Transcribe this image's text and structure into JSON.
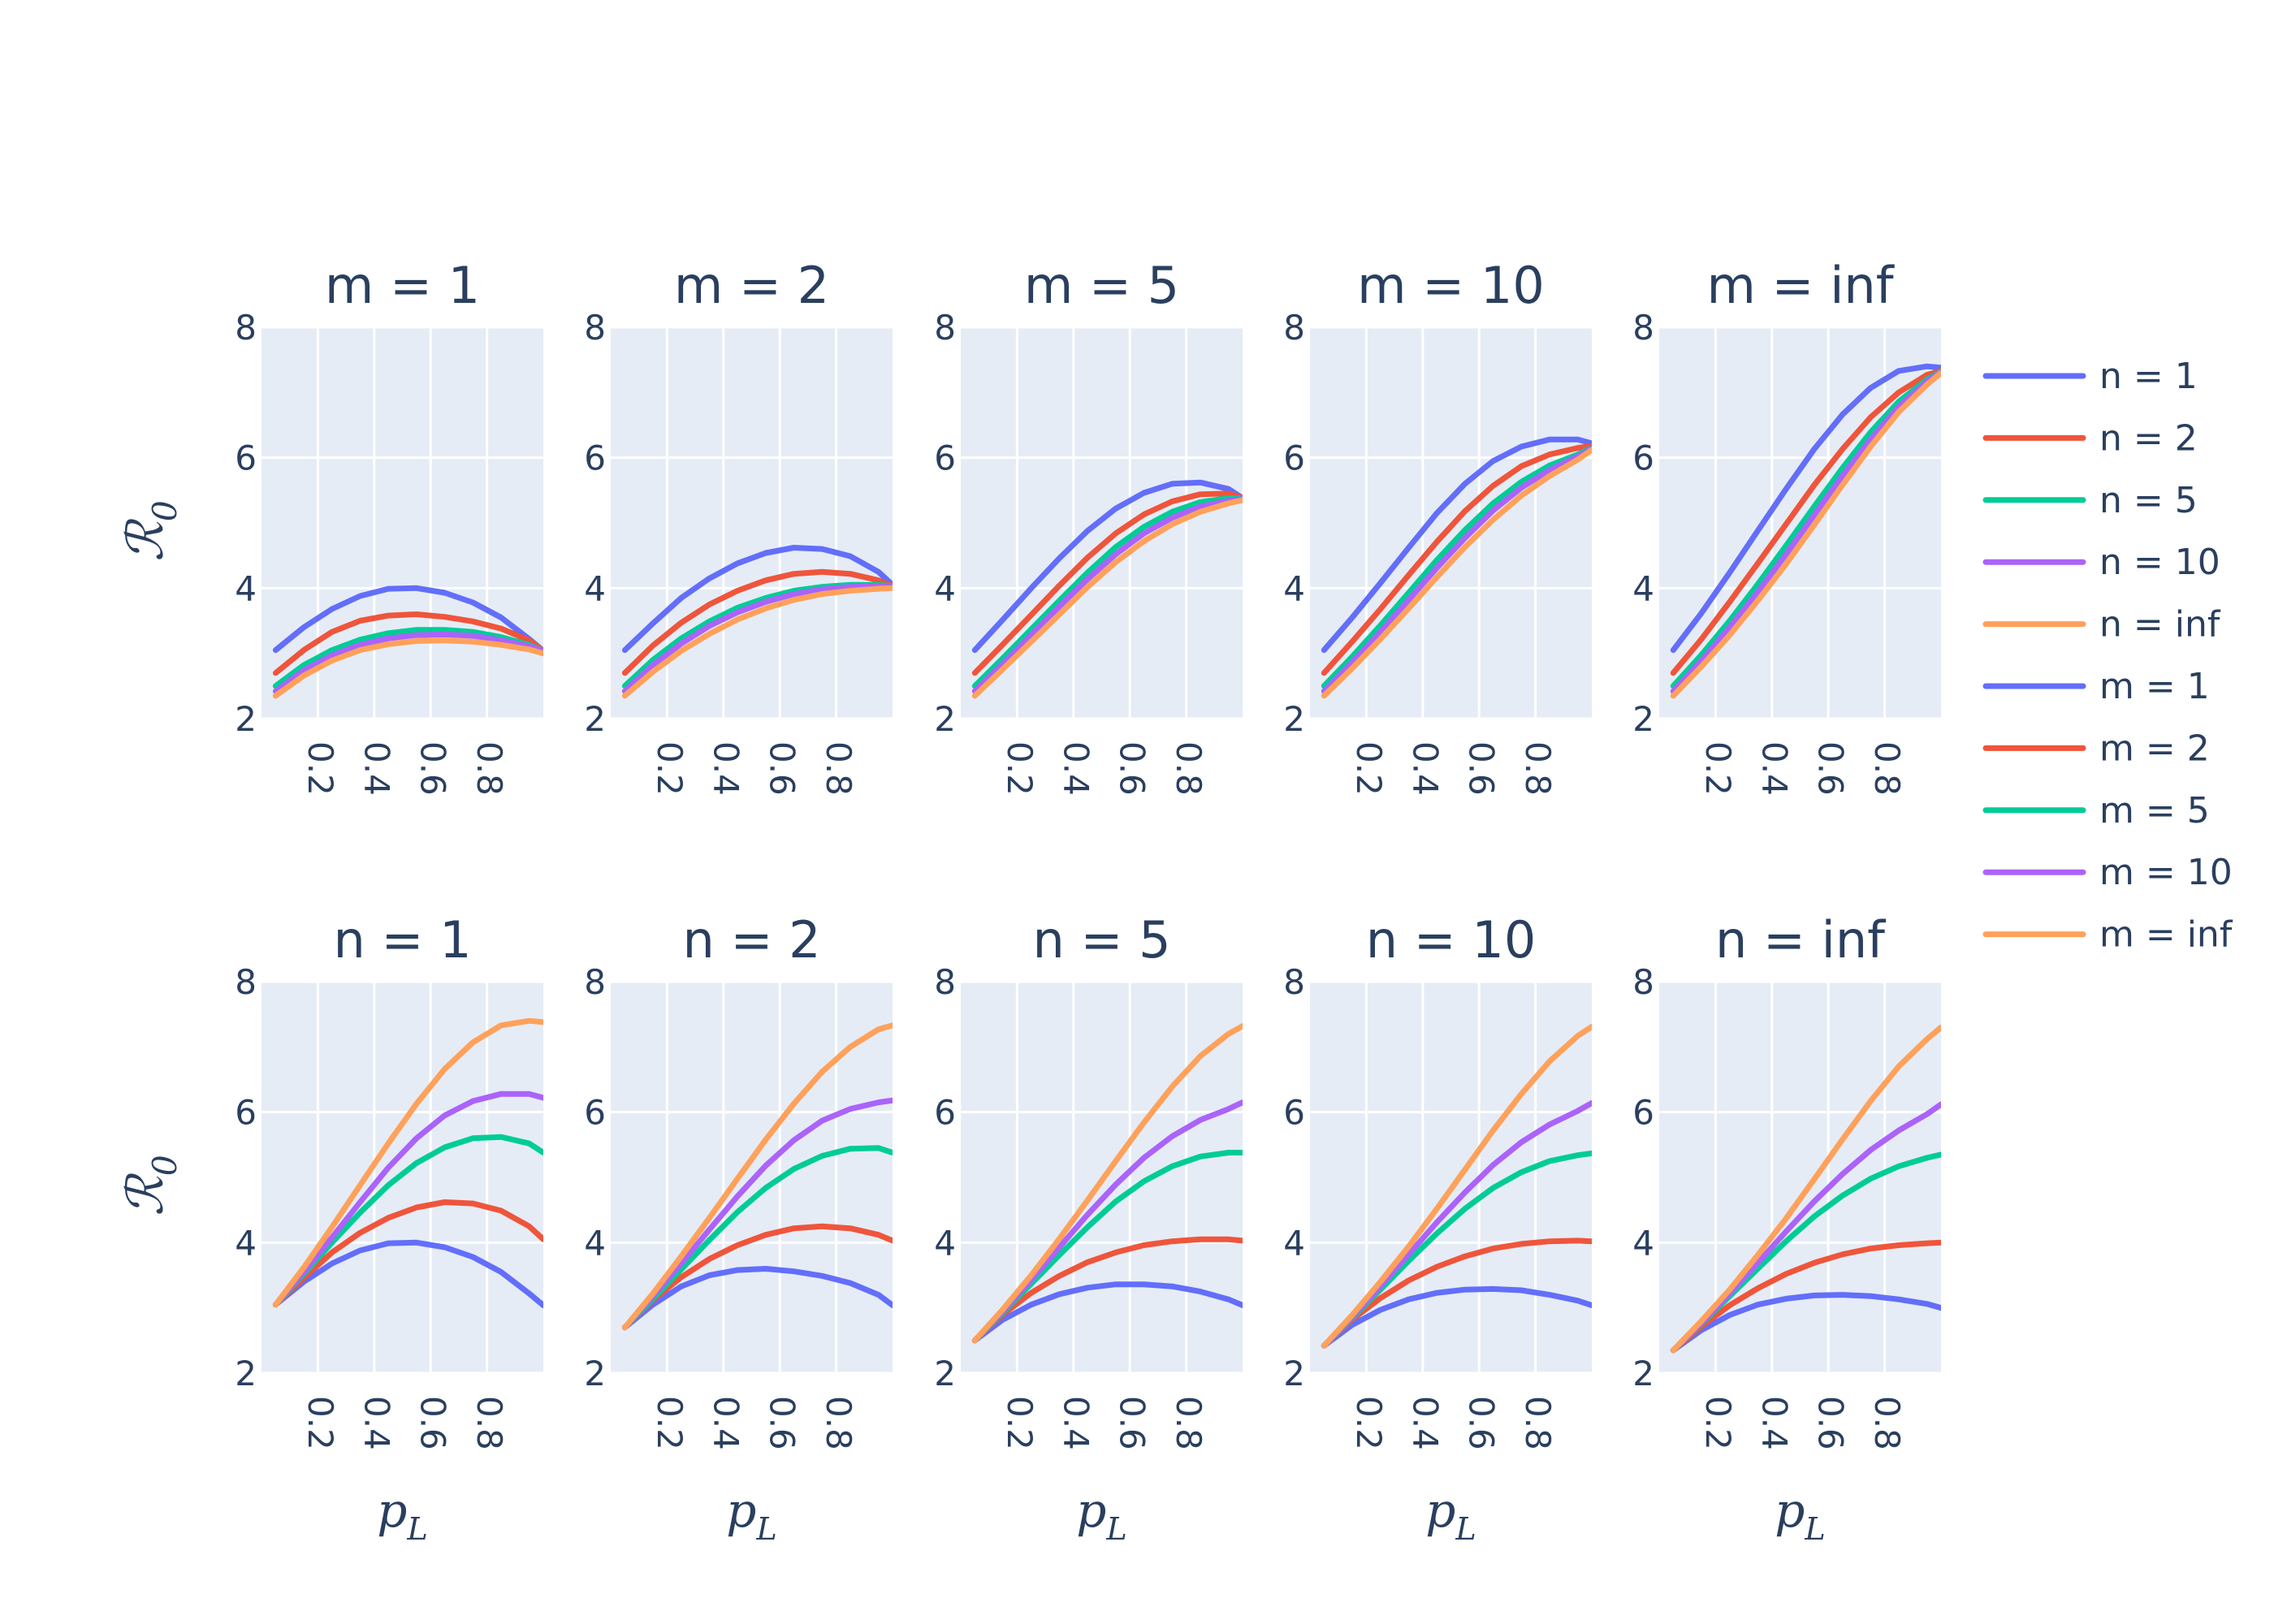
{
  "chart_data": {
    "type": "line",
    "x": [
      0.05,
      0.15,
      0.25,
      0.35,
      0.45,
      0.55,
      0.65,
      0.75,
      0.85,
      0.95,
      1.0
    ],
    "xticks": [
      "0.2",
      "0.4",
      "0.6",
      "0.8"
    ],
    "xtick_values": [
      0.2,
      0.4,
      0.6,
      0.8
    ],
    "yticks": [
      "2",
      "4",
      "6",
      "8"
    ],
    "ytick_values": [
      2,
      4,
      6,
      8
    ],
    "xlim": [
      0,
      1
    ],
    "ylim": [
      2,
      8
    ],
    "xlabel": "p_L",
    "ylabel": "R_0",
    "grid": true,
    "legend_position": "right",
    "colors": [
      "#636efa",
      "#EF553B",
      "#00cc96",
      "#ab63fa",
      "#FFA15A"
    ],
    "legend": [
      "n = 1",
      "n = 2",
      "n = 5",
      "n = 10",
      "n = inf",
      "m = 1",
      "m = 2",
      "m = 5",
      "m = 10",
      "m = inf"
    ],
    "panels": [
      {
        "title": "m = 1",
        "series": [
          {
            "name": "n = 1",
            "values": [
              3.05,
              3.4,
              3.68,
              3.88,
              3.99,
              4.0,
              3.93,
              3.78,
              3.55,
              3.22,
              3.04
            ]
          },
          {
            "name": "n = 2",
            "values": [
              2.7,
              3.05,
              3.33,
              3.5,
              3.58,
              3.6,
              3.56,
              3.49,
              3.38,
              3.2,
              3.04
            ]
          },
          {
            "name": "n = 5",
            "values": [
              2.5,
              2.82,
              3.05,
              3.21,
              3.31,
              3.36,
              3.36,
              3.33,
              3.25,
              3.13,
              3.04
            ]
          },
          {
            "name": "n = 10",
            "values": [
              2.42,
              2.74,
              2.97,
              3.13,
              3.23,
              3.28,
              3.29,
              3.27,
              3.2,
              3.11,
              3.04
            ]
          },
          {
            "name": "n = inf",
            "values": [
              2.35,
              2.66,
              2.89,
              3.05,
              3.14,
              3.19,
              3.2,
              3.18,
              3.13,
              3.06,
              3.0
            ]
          }
        ]
      },
      {
        "title": "m = 2",
        "series": [
          {
            "name": "n = 1",
            "values": [
              3.05,
              3.46,
              3.85,
              4.15,
              4.38,
              4.54,
              4.62,
              4.6,
              4.49,
              4.25,
              4.05
            ]
          },
          {
            "name": "n = 2",
            "values": [
              2.7,
              3.12,
              3.47,
              3.75,
              3.96,
              4.12,
              4.22,
              4.25,
              4.22,
              4.12,
              4.03
            ]
          },
          {
            "name": "n = 5",
            "values": [
              2.5,
              2.9,
              3.23,
              3.49,
              3.7,
              3.85,
              3.96,
              4.02,
              4.05,
              4.05,
              4.03
            ]
          },
          {
            "name": "n = 10",
            "values": [
              2.42,
              2.82,
              3.15,
              3.42,
              3.63,
              3.79,
              3.91,
              3.98,
              4.02,
              4.03,
              4.02
            ]
          },
          {
            "name": "n = inf",
            "values": [
              2.35,
              2.72,
              3.04,
              3.3,
              3.52,
              3.69,
              3.82,
              3.91,
              3.96,
              3.99,
              4.0
            ]
          }
        ]
      },
      {
        "title": "m = 5",
        "series": [
          {
            "name": "n = 1",
            "values": [
              3.05,
              3.52,
              4.0,
              4.46,
              4.88,
              5.22,
              5.46,
              5.6,
              5.62,
              5.52,
              5.38
            ]
          },
          {
            "name": "n = 2",
            "values": [
              2.7,
              3.14,
              3.59,
              4.04,
              4.47,
              4.84,
              5.13,
              5.33,
              5.44,
              5.45,
              5.38
            ]
          },
          {
            "name": "n = 5",
            "values": [
              2.5,
              2.93,
              3.37,
              3.81,
              4.24,
              4.63,
              4.94,
              5.17,
              5.32,
              5.38,
              5.38
            ]
          },
          {
            "name": "n = 10",
            "values": [
              2.42,
              2.84,
              3.28,
              3.72,
              4.14,
              4.52,
              4.84,
              5.08,
              5.25,
              5.34,
              5.37
            ]
          },
          {
            "name": "n = inf",
            "values": [
              2.35,
              2.76,
              3.18,
              3.6,
              4.02,
              4.4,
              4.72,
              4.98,
              5.17,
              5.3,
              5.35
            ]
          }
        ]
      },
      {
        "title": "m = 10",
        "series": [
          {
            "name": "n = 1",
            "values": [
              3.05,
              3.55,
              4.08,
              4.62,
              5.15,
              5.6,
              5.95,
              6.17,
              6.28,
              6.28,
              6.22
            ]
          },
          {
            "name": "n = 2",
            "values": [
              2.7,
              3.18,
              3.68,
              4.2,
              4.71,
              5.18,
              5.57,
              5.87,
              6.05,
              6.15,
              6.18
            ]
          },
          {
            "name": "n = 5",
            "values": [
              2.5,
              2.95,
              3.43,
              3.93,
              4.43,
              4.89,
              5.3,
              5.63,
              5.88,
              6.05,
              6.15
            ]
          },
          {
            "name": "n = 10",
            "values": [
              2.42,
              2.86,
              3.33,
              3.82,
              4.31,
              4.77,
              5.19,
              5.54,
              5.81,
              6.02,
              6.14
            ]
          },
          {
            "name": "n = inf",
            "values": [
              2.35,
              2.77,
              3.22,
              3.69,
              4.17,
              4.63,
              5.05,
              5.42,
              5.72,
              5.97,
              6.12
            ]
          }
        ]
      },
      {
        "title": "m = inf",
        "series": [
          {
            "name": "n = 1",
            "values": [
              3.05,
              3.62,
              4.24,
              4.88,
              5.52,
              6.13,
              6.66,
              7.07,
              7.33,
              7.4,
              7.38
            ]
          },
          {
            "name": "n = 2",
            "values": [
              2.7,
              3.22,
              3.79,
              4.38,
              4.98,
              5.58,
              6.13,
              6.62,
              7.0,
              7.27,
              7.33
            ]
          },
          {
            "name": "n = 5",
            "values": [
              2.5,
              2.98,
              3.5,
              4.06,
              4.65,
              5.25,
              5.84,
              6.39,
              6.86,
              7.2,
              7.32
            ]
          },
          {
            "name": "n = 10",
            "values": [
              2.42,
              2.89,
              3.4,
              3.94,
              4.52,
              5.12,
              5.72,
              6.28,
              6.78,
              7.17,
              7.31
            ]
          },
          {
            "name": "n = inf",
            "values": [
              2.35,
              2.8,
              3.28,
              3.81,
              4.37,
              4.97,
              5.58,
              6.17,
              6.7,
              7.12,
              7.3
            ]
          }
        ]
      },
      {
        "title": "n = 1",
        "series": [
          {
            "name": "m = 1",
            "values": [
              3.05,
              3.4,
              3.68,
              3.88,
              3.99,
              4.0,
              3.93,
              3.78,
              3.55,
              3.22,
              3.04
            ]
          },
          {
            "name": "m = 2",
            "values": [
              3.05,
              3.46,
              3.85,
              4.15,
              4.38,
              4.54,
              4.62,
              4.6,
              4.49,
              4.25,
              4.05
            ]
          },
          {
            "name": "m = 5",
            "values": [
              3.05,
              3.52,
              4.0,
              4.46,
              4.88,
              5.22,
              5.46,
              5.6,
              5.62,
              5.52,
              5.38
            ]
          },
          {
            "name": "m = 10",
            "values": [
              3.05,
              3.55,
              4.08,
              4.62,
              5.15,
              5.6,
              5.95,
              6.17,
              6.28,
              6.28,
              6.22
            ]
          },
          {
            "name": "m = inf",
            "values": [
              3.05,
              3.62,
              4.24,
              4.88,
              5.52,
              6.13,
              6.66,
              7.07,
              7.33,
              7.4,
              7.38
            ]
          }
        ]
      },
      {
        "title": "n = 2",
        "series": [
          {
            "name": "m = 1",
            "values": [
              2.7,
              3.05,
              3.33,
              3.5,
              3.58,
              3.6,
              3.56,
              3.49,
              3.38,
              3.2,
              3.04
            ]
          },
          {
            "name": "m = 2",
            "values": [
              2.7,
              3.12,
              3.47,
              3.75,
              3.96,
              4.12,
              4.22,
              4.25,
              4.22,
              4.12,
              4.03
            ]
          },
          {
            "name": "m = 5",
            "values": [
              2.7,
              3.14,
              3.59,
              4.04,
              4.47,
              4.84,
              5.13,
              5.33,
              5.44,
              5.45,
              5.38
            ]
          },
          {
            "name": "m = 10",
            "values": [
              2.7,
              3.18,
              3.68,
              4.2,
              4.71,
              5.18,
              5.57,
              5.87,
              6.05,
              6.15,
              6.18
            ]
          },
          {
            "name": "m = inf",
            "values": [
              2.7,
              3.22,
              3.79,
              4.38,
              4.98,
              5.58,
              6.13,
              6.62,
              7.0,
              7.27,
              7.33
            ]
          }
        ]
      },
      {
        "title": "n = 5",
        "series": [
          {
            "name": "m = 1",
            "values": [
              2.5,
              2.82,
              3.05,
              3.21,
              3.31,
              3.36,
              3.36,
              3.33,
              3.25,
              3.13,
              3.04
            ]
          },
          {
            "name": "m = 2",
            "values": [
              2.5,
              2.9,
              3.23,
              3.49,
              3.7,
              3.85,
              3.96,
              4.02,
              4.05,
              4.05,
              4.03
            ]
          },
          {
            "name": "m = 5",
            "values": [
              2.5,
              2.93,
              3.37,
              3.81,
              4.24,
              4.63,
              4.94,
              5.17,
              5.32,
              5.38,
              5.38
            ]
          },
          {
            "name": "m = 10",
            "values": [
              2.5,
              2.95,
              3.43,
              3.93,
              4.43,
              4.89,
              5.3,
              5.63,
              5.88,
              6.05,
              6.15
            ]
          },
          {
            "name": "m = inf",
            "values": [
              2.5,
              2.98,
              3.5,
              4.06,
              4.65,
              5.25,
              5.84,
              6.39,
              6.86,
              7.2,
              7.32
            ]
          }
        ]
      },
      {
        "title": "n = 10",
        "series": [
          {
            "name": "m = 1",
            "values": [
              2.42,
              2.74,
              2.97,
              3.13,
              3.23,
              3.28,
              3.29,
              3.27,
              3.2,
              3.11,
              3.04
            ]
          },
          {
            "name": "m = 2",
            "values": [
              2.42,
              2.82,
              3.15,
              3.42,
              3.63,
              3.79,
              3.91,
              3.98,
              4.02,
              4.03,
              4.02
            ]
          },
          {
            "name": "m = 5",
            "values": [
              2.42,
              2.84,
              3.28,
              3.72,
              4.14,
              4.52,
              4.84,
              5.08,
              5.25,
              5.34,
              5.37
            ]
          },
          {
            "name": "m = 10",
            "values": [
              2.42,
              2.86,
              3.33,
              3.82,
              4.31,
              4.77,
              5.19,
              5.54,
              5.81,
              6.02,
              6.14
            ]
          },
          {
            "name": "m = inf",
            "values": [
              2.42,
              2.89,
              3.4,
              3.94,
              4.52,
              5.12,
              5.72,
              6.28,
              6.78,
              7.17,
              7.31
            ]
          }
        ]
      },
      {
        "title": "n = inf",
        "series": [
          {
            "name": "m = 1",
            "values": [
              2.35,
              2.66,
              2.89,
              3.05,
              3.14,
              3.19,
              3.2,
              3.18,
              3.13,
              3.06,
              3.0
            ]
          },
          {
            "name": "m = 2",
            "values": [
              2.35,
              2.72,
              3.04,
              3.3,
              3.52,
              3.69,
              3.82,
              3.91,
              3.96,
              3.99,
              4.0
            ]
          },
          {
            "name": "m = 5",
            "values": [
              2.35,
              2.76,
              3.18,
              3.6,
              4.02,
              4.4,
              4.72,
              4.98,
              5.17,
              5.3,
              5.35
            ]
          },
          {
            "name": "m = 10",
            "values": [
              2.35,
              2.77,
              3.22,
              3.69,
              4.17,
              4.63,
              5.05,
              5.42,
              5.72,
              5.97,
              6.12
            ]
          },
          {
            "name": "m = inf",
            "values": [
              2.35,
              2.8,
              3.28,
              3.81,
              4.37,
              4.97,
              5.58,
              6.17,
              6.7,
              7.12,
              7.3
            ]
          }
        ]
      }
    ]
  }
}
